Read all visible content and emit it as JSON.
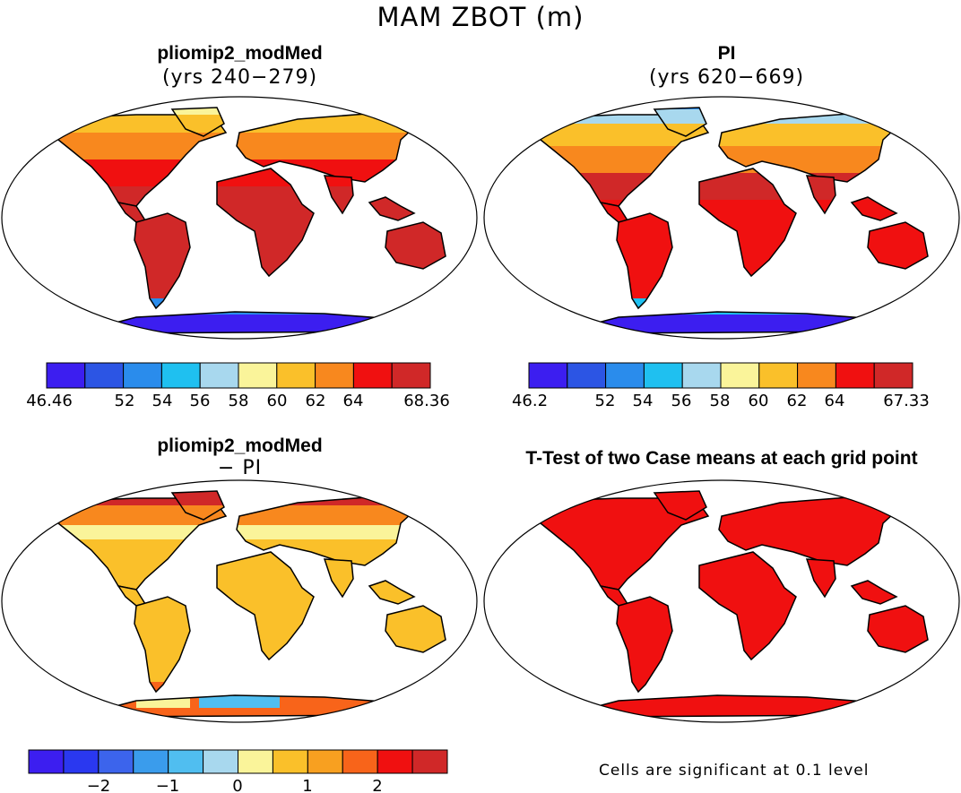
{
  "title": "MAM ZBOT (m)",
  "panels": [
    {
      "title": "pliomip2_modMed",
      "subtitle": "(yrs 240−279)"
    },
    {
      "title": "PI",
      "subtitle": "(yrs 620−669)"
    },
    {
      "title": "pliomip2_modMed",
      "subtitle": "− PI"
    },
    {
      "title": "T-Test of two Case means at each grid point",
      "subtitle": ""
    }
  ],
  "colorbars": [
    {
      "colors": [
        "#3c1ef0",
        "#2c55e4",
        "#2a8cec",
        "#1fc0f0",
        "#a8d8ee",
        "#faf49a",
        "#fac02a",
        "#f8881e",
        "#f01010",
        "#d02828"
      ],
      "tick_labels": [
        "46.46",
        "52",
        "54",
        "56",
        "58",
        "60",
        "62",
        "64",
        "68.36"
      ]
    },
    {
      "colors": [
        "#3c1ef0",
        "#2c55e4",
        "#2a8cec",
        "#1fc0f0",
        "#a8d8ee",
        "#faf49a",
        "#fac02a",
        "#f8881e",
        "#f01010",
        "#d02828"
      ],
      "tick_labels": [
        "46.2",
        "52",
        "54",
        "56",
        "58",
        "60",
        "62",
        "64",
        "67.33"
      ]
    },
    {
      "colors": [
        "#3c1ef0",
        "#2a38f0",
        "#3c64ec",
        "#3a9cec",
        "#50bef0",
        "#a8d8ee",
        "#faf49a",
        "#fac02a",
        "#f8a020",
        "#f8641a",
        "#f01010",
        "#d02828"
      ],
      "tick_labels": [
        "−2",
        "−1",
        "0",
        "1",
        "2"
      ]
    }
  ],
  "significance_note": "Cells are significant at 0.1 level"
}
